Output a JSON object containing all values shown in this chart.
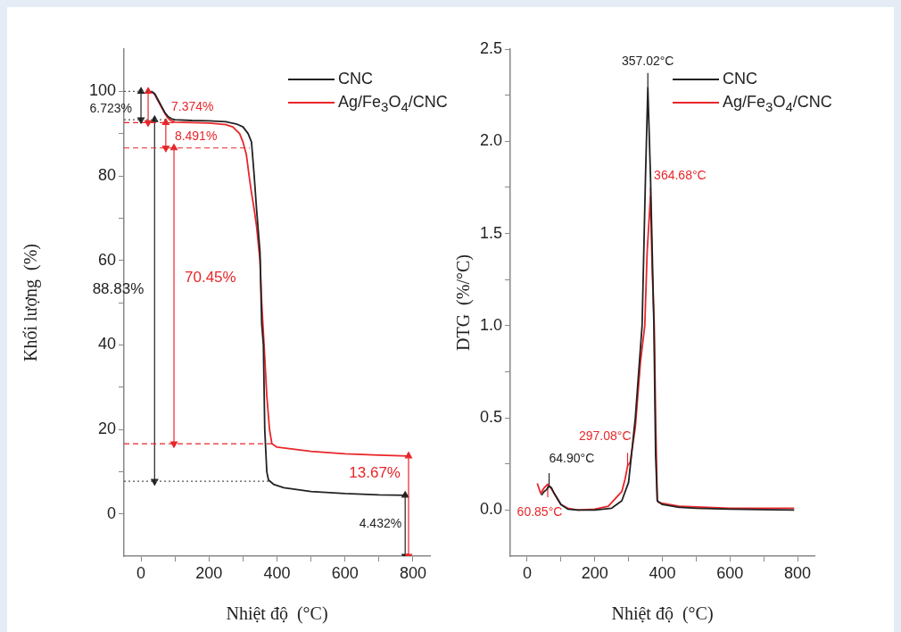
{
  "chart_data": [
    {
      "type": "line",
      "xlabel": "Nhiệt độ  (°C)",
      "ylabel": "Khối lượng  (%)",
      "xlim": [
        -50,
        850
      ],
      "ylim": [
        -10,
        110
      ],
      "xticks": [
        0,
        {
          "value": 100,
          "label": null
        },
        200,
        {
          "value": 300,
          "label": null
        },
        400,
        {
          "value": 500,
          "label": null
        },
        600,
        {
          "value": 700,
          "label": null
        },
        800
      ],
      "yticks": [
        0,
        {
          "value": 10,
          "label": null
        },
        20,
        {
          "value": 30,
          "label": null
        },
        40,
        {
          "value": 50,
          "label": null
        },
        60,
        {
          "value": 70,
          "label": null
        },
        80,
        {
          "value": 90,
          "label": null
        },
        100
      ],
      "grid": false,
      "legend": "top right",
      "marker": "none",
      "line_style": "solid",
      "series": [
        {
          "name": "CNC",
          "color": "#222222",
          "x": [
            30,
            40,
            50,
            60,
            70,
            80,
            90,
            100,
            150,
            200,
            250,
            280,
            300,
            315,
            325,
            333,
            340,
            350,
            355,
            360,
            364,
            370,
            375,
            390,
            420,
            500,
            600,
            700,
            785
          ],
          "values": [
            100,
            99.5,
            98,
            96.5,
            95,
            94,
            93.5,
            93.3,
            93.1,
            93,
            92.8,
            92.3,
            91.6,
            90,
            88,
            80,
            72,
            62,
            45,
            40,
            20,
            10,
            8,
            7,
            6.2,
            5.3,
            4.8,
            4.5,
            4.4
          ]
        },
        {
          "name": "Ag/Fe$_{3}$O$_{4}$/CNC",
          "color": "#e8262a",
          "x": [
            30,
            40,
            50,
            60,
            70,
            80,
            90,
            100,
            150,
            200,
            250,
            270,
            290,
            300,
            310,
            318,
            325,
            333,
            340,
            350,
            355,
            362,
            370,
            378,
            385,
            400,
            500,
            600,
            700,
            785
          ],
          "values": [
            100,
            99.3,
            97.8,
            96.3,
            94.8,
            93.6,
            93,
            92.7,
            92.6,
            92.5,
            92.1,
            91.6,
            90,
            88,
            85,
            80,
            76,
            72,
            68,
            60,
            50,
            40,
            28,
            20,
            16.6,
            15.8,
            14.8,
            14.2,
            13.9,
            13.7
          ]
        },
        {
          "color": "#555555",
          "line_style": "dotted",
          "marker": "none",
          "x": [
            -50,
            30
          ],
          "values": [
            100,
            100
          ]
        },
        {
          "color": "#555555",
          "line_style": "dotted",
          "marker": "none",
          "x": [
            -50,
            100
          ],
          "values": [
            93.3,
            93.3
          ]
        },
        {
          "color": "#e8262a",
          "line_style": "dashed",
          "marker": "none",
          "x": [
            -50,
            100
          ],
          "values": [
            92.6,
            92.6
          ]
        },
        {
          "color": "#e8262a",
          "line_style": "dashed",
          "marker": "none",
          "x": [
            -50,
            320
          ],
          "values": [
            86.6,
            86.6
          ]
        },
        {
          "color": "#e8262a",
          "line_style": "dashed",
          "marker": "none",
          "x": [
            -50,
            385
          ],
          "values": [
            16.6,
            16.6
          ]
        },
        {
          "color": "#555555",
          "line_style": "dotted",
          "marker": "none",
          "x": [
            -50,
            375
          ],
          "values": [
            7.7,
            7.7
          ]
        },
        {
          "color": "#222222",
          "line_style": "solid",
          "marker": "triangle",
          "x": [
            0,
            0
          ],
          "values": [
            100,
            93.3
          ]
        },
        {
          "color": "#e8262a",
          "line_style": "solid",
          "marker": "triangle",
          "x": [
            21,
            21
          ],
          "values": [
            100,
            92.6
          ]
        },
        {
          "color": "#e8262a",
          "line_style": "solid",
          "marker": "triangle",
          "x": [
            73,
            73
          ],
          "values": [
            92.6,
            86.6
          ]
        },
        {
          "color": "#e8262a",
          "line_style": "solid",
          "marker": "triangle",
          "x": [
            97,
            97
          ],
          "values": [
            86.6,
            16.6
          ]
        },
        {
          "color": "#222222",
          "line_style": "solid",
          "marker": "triangle",
          "x": [
            40,
            40
          ],
          "values": [
            93.3,
            7.7
          ]
        },
        {
          "color": "#e8262a",
          "line_style": "solid",
          "marker": "triangle",
          "x": [
            787,
            787
          ],
          "values": [
            13.7,
            -10
          ]
        },
        {
          "color": "#222222",
          "line_style": "solid",
          "marker": "triangle",
          "x": [
            777,
            777
          ],
          "values": [
            4.4,
            -10
          ]
        }
      ],
      "annotations": [
        {
          "text": "6.723%",
          "x": 0,
          "y": 95.8
        },
        {
          "text": "7.374%",
          "x": 21,
          "y": 96.3
        },
        {
          "text": "8.491%",
          "x": 73,
          "y": 89.3
        },
        {
          "text": "70.45%",
          "x": 97,
          "y": 55.8
        },
        {
          "text": "88.83%",
          "x": 40,
          "y": 53
        },
        {
          "text": "13.67%",
          "x": 787,
          "y": 9.5
        },
        {
          "text": "4.432%",
          "x": 777,
          "y": -2.4
        }
      ]
    },
    {
      "type": "line",
      "xlabel": "Nhiệt độ  (°C)",
      "ylabel": "DTG  (%/°C)",
      "xlim": [
        -50,
        850
      ],
      "ylim": [
        -0.25,
        2.5
      ],
      "xticks": [
        0,
        {
          "value": 100,
          "label": null
        },
        200,
        {
          "value": 300,
          "label": null
        },
        400,
        {
          "value": 500,
          "label": null
        },
        600,
        {
          "value": 700,
          "label": null
        },
        800
      ],
      "yticks": [
        {
          "value": 0,
          "label": "0.0"
        },
        {
          "value": 0.25,
          "label": null
        },
        0.5,
        {
          "value": 0.75,
          "label": null
        },
        {
          "value": 1,
          "label": "1.0"
        },
        {
          "value": 1.25,
          "label": null
        },
        1.5,
        {
          "value": 1.75,
          "label": null
        },
        {
          "value": 2,
          "label": "2.0"
        },
        {
          "value": 2.25,
          "label": null
        },
        2.5
      ],
      "grid": false,
      "legend": "top right",
      "marker": "none",
      "line_style": "solid",
      "series": [
        {
          "name": "CNC",
          "color": "#222222",
          "x": [
            42,
            50,
            57,
            64.9,
            72,
            80,
            90,
            100,
            120,
            150,
            200,
            250,
            280,
            300,
            320,
            330,
            340,
            345,
            350,
            357.02,
            365,
            370,
            375,
            380,
            385,
            400,
            450,
            500,
            600,
            790
          ],
          "values": [
            0.08,
            0.1,
            0.11,
            0.13,
            0.12,
            0.09,
            0.06,
            0.03,
            0.005,
            0,
            0,
            0.01,
            0.05,
            0.15,
            0.5,
            0.75,
            1,
            1.4,
            1.8,
            2.29,
            1.8,
            1.4,
            1,
            0.3,
            0.05,
            0.03,
            0.015,
            0.01,
            0.005,
            0
          ]
        },
        {
          "name": "Ag/Fe$_{3}$O$_{4}$/CNC",
          "color": "#e8262a",
          "x": [
            30,
            40,
            50,
            60.85,
            70,
            80,
            90,
            100,
            120,
            150,
            200,
            240,
            260,
            280,
            290,
            297.08,
            305,
            320,
            335,
            348,
            355,
            364.68,
            370,
            376,
            380,
            385,
            390,
            450,
            600,
            790
          ],
          "values": [
            0.145,
            0.09,
            0.12,
            0.14,
            0.12,
            0.09,
            0.06,
            0.03,
            0.01,
            0,
            0.005,
            0.02,
            0.06,
            0.1,
            0.17,
            0.24,
            0.26,
            0.45,
            0.8,
            1,
            1.4,
            1.7,
            1.3,
            1,
            0.5,
            0.05,
            0.04,
            0.02,
            0.01,
            0.01
          ]
        },
        {
          "color": "#222222",
          "line_style": "solid",
          "marker": "none",
          "x": [
            357.02,
            357.02
          ],
          "values": [
            2.29,
            2.37
          ]
        },
        {
          "color": "#e8262a",
          "line_style": "solid",
          "marker": "none",
          "x": [
            364.68,
            364.68
          ],
          "values": [
            1.6,
            1.75
          ]
        },
        {
          "color": "#e8262a",
          "line_style": "solid",
          "marker": "none",
          "x": [
            297.08,
            297.08
          ],
          "values": [
            0.24,
            0.31
          ]
        },
        {
          "color": "#222222",
          "line_style": "solid",
          "marker": "none",
          "x": [
            64.9,
            64.9
          ],
          "values": [
            0.13,
            0.2
          ]
        },
        {
          "color": "#e8262a",
          "line_style": "solid",
          "marker": "none",
          "x": [
            60.85,
            60.85
          ],
          "values": [
            0.07,
            0.14
          ]
        }
      ],
      "annotations": [
        {
          "text": "357.02°C",
          "x": 357.02,
          "y": 2.29
        },
        {
          "text": "364.68°C",
          "x": 364.68,
          "y": 1.7
        },
        {
          "text": "297.08°C",
          "x": 297.08,
          "y": 0.24
        },
        {
          "text": "64.90°C",
          "x": 64.9,
          "y": 0.13
        },
        {
          "text": "60.85°C",
          "x": 60.85,
          "y": 0.14
        }
      ]
    }
  ]
}
